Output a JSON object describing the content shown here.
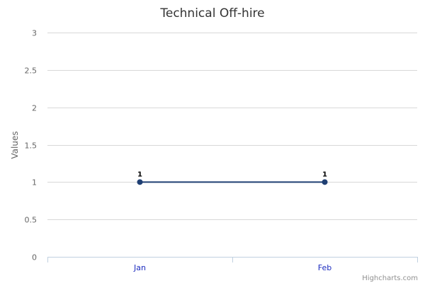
{
  "chart_data": {
    "type": "line",
    "title": "Technical Off-hire",
    "ylabel": "Values",
    "xlabel": "",
    "categories": [
      "Jan",
      "Feb"
    ],
    "series": [
      {
        "values": [
          1,
          1
        ],
        "color": "#1f3f73"
      }
    ],
    "ylim": [
      0,
      3
    ],
    "yticks": [
      0,
      0.5,
      1,
      1.5,
      2,
      2.5,
      3
    ],
    "ytick_labels": [
      "0",
      "0.5",
      "1",
      "1.5",
      "2",
      "2.5",
      "3"
    ],
    "data_labels": [
      "1",
      "1"
    ],
    "grid": true,
    "legend": "none"
  },
  "credits": "Highcharts.com",
  "colors": {
    "grid": "#d8d8d8",
    "axis": "#c0d0e0",
    "series": "#1f3f73",
    "xtick": "#1c2bbf"
  }
}
